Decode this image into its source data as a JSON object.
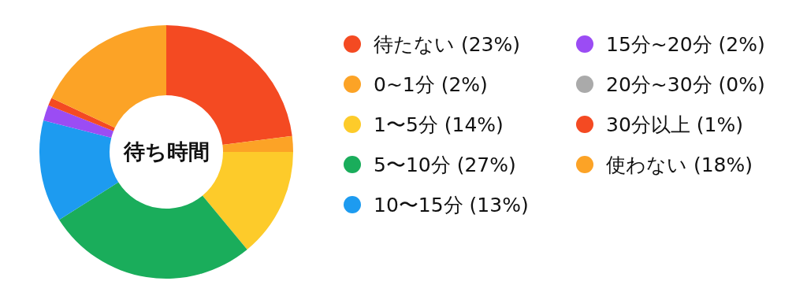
{
  "chart_data": {
    "type": "donut",
    "title": "待ち時間",
    "categories": [
      "待たない (23%)",
      "0~1分 (2%)",
      "1〜5分 (14%)",
      "5〜10分 (27%)",
      "10〜15分 (13%)",
      "15分~20分 (2%)",
      "20分~30分 (0%)",
      "30分以上 (1%)",
      "使わない (18%)"
    ],
    "values": [
      23,
      2,
      14,
      27,
      13,
      2,
      0,
      1,
      18
    ],
    "colors": [
      "#f44a22",
      "#fca326",
      "#fdcb2a",
      "#1aad5b",
      "#1d9bf0",
      "#9b4cf4",
      "#aaaaaa",
      "#f44a22",
      "#fca326"
    ],
    "legend": "right"
  }
}
